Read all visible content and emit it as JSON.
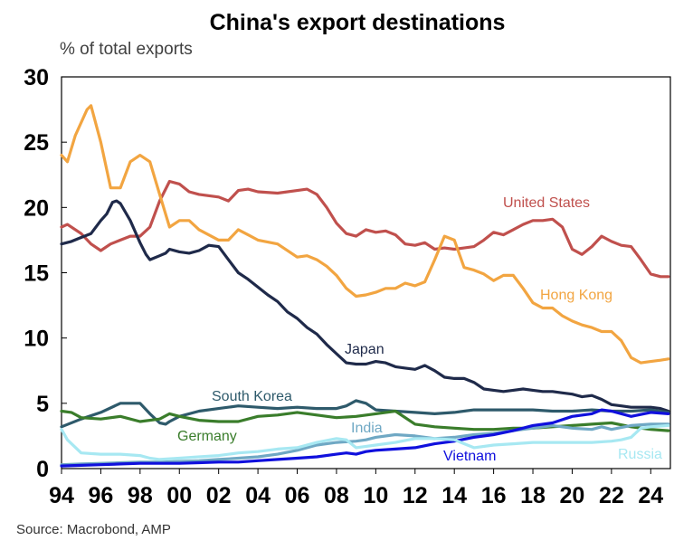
{
  "chart_data": {
    "type": "line",
    "title": "China's export destinations",
    "ylabel": "% of total exports",
    "source": "Source: Macrobond, AMP",
    "ylim": [
      0,
      30
    ],
    "xlim": [
      1994.0,
      2025.0
    ],
    "yticks": [
      0,
      5,
      10,
      15,
      20,
      25,
      30
    ],
    "xticks": [
      1994,
      1996,
      1998,
      2000,
      2002,
      2004,
      2006,
      2008,
      2010,
      2012,
      2014,
      2016,
      2018,
      2020,
      2022,
      2024
    ],
    "xtick_labels": [
      "94",
      "96",
      "98",
      "00",
      "02",
      "04",
      "06",
      "08",
      "10",
      "12",
      "14",
      "16",
      "18",
      "20",
      "22",
      "24"
    ],
    "grid": false,
    "series": [
      {
        "name": "United States",
        "color": "#c0504d",
        "x": [
          1994.0,
          1994.3,
          1995.0,
          1995.5,
          1996.0,
          1996.5,
          1997.0,
          1997.5,
          1998.0,
          1998.5,
          1999.0,
          1999.5,
          2000.0,
          2000.5,
          2001.0,
          2002.0,
          2002.5,
          2003.0,
          2003.5,
          2004.0,
          2005.0,
          2006.0,
          2006.5,
          2007.0,
          2007.5,
          2008.0,
          2008.5,
          2009.0,
          2009.5,
          2010.0,
          2010.5,
          2011.0,
          2011.5,
          2012.0,
          2012.5,
          2013.0,
          2013.5,
          2014.0,
          2014.5,
          2015.0,
          2015.5,
          2016.0,
          2016.5,
          2017.0,
          2017.5,
          2018.0,
          2018.5,
          2019.0,
          2019.5,
          2020.0,
          2020.5,
          2021.0,
          2021.5,
          2022.0,
          2022.5,
          2023.0,
          2023.5,
          2024.0,
          2024.5,
          2024.9
        ],
        "values": [
          18.5,
          18.7,
          18.0,
          17.2,
          16.7,
          17.2,
          17.5,
          17.8,
          17.8,
          18.5,
          20.5,
          22.0,
          21.8,
          21.2,
          21.0,
          20.8,
          20.5,
          21.3,
          21.4,
          21.2,
          21.1,
          21.3,
          21.4,
          21.0,
          20.0,
          18.8,
          18.0,
          17.8,
          18.3,
          18.1,
          18.2,
          17.9,
          17.2,
          17.1,
          17.3,
          16.8,
          16.9,
          16.8,
          16.9,
          17.0,
          17.5,
          18.1,
          17.9,
          18.3,
          18.7,
          19.0,
          19.0,
          19.1,
          18.5,
          16.8,
          16.4,
          17.0,
          17.8,
          17.4,
          17.1,
          17.0,
          16.0,
          14.9,
          14.7,
          14.7
        ]
      },
      {
        "name": "Hong Kong",
        "color": "#f2a541",
        "x": [
          1994.0,
          1994.3,
          1994.7,
          1995.0,
          1995.3,
          1995.5,
          1996.0,
          1996.5,
          1997.0,
          1997.5,
          1998.0,
          1998.5,
          1999.0,
          1999.5,
          2000.0,
          2000.5,
          2001.0,
          2002.0,
          2002.5,
          2003.0,
          2003.5,
          2004.0,
          2005.0,
          2006.0,
          2006.5,
          2007.0,
          2007.5,
          2008.0,
          2008.5,
          2009.0,
          2009.5,
          2010.0,
          2010.5,
          2011.0,
          2011.5,
          2012.0,
          2012.5,
          2013.0,
          2013.5,
          2014.0,
          2014.5,
          2015.0,
          2015.5,
          2016.0,
          2016.5,
          2017.0,
          2017.5,
          2018.0,
          2018.5,
          2019.0,
          2019.5,
          2020.0,
          2020.5,
          2021.0,
          2021.5,
          2022.0,
          2022.5,
          2023.0,
          2023.5,
          2024.0,
          2024.5,
          2024.9
        ],
        "values": [
          24.0,
          23.5,
          25.5,
          26.5,
          27.5,
          27.8,
          25.0,
          21.5,
          21.5,
          23.5,
          24.0,
          23.5,
          21.0,
          18.5,
          19.0,
          19.0,
          18.3,
          17.5,
          17.5,
          18.3,
          17.9,
          17.5,
          17.2,
          16.2,
          16.3,
          16.0,
          15.5,
          14.8,
          13.8,
          13.2,
          13.3,
          13.5,
          13.8,
          13.8,
          14.2,
          14.0,
          14.3,
          16.0,
          17.8,
          17.5,
          15.4,
          15.2,
          14.9,
          14.4,
          14.8,
          14.8,
          13.8,
          12.7,
          12.3,
          12.3,
          11.7,
          11.3,
          11.0,
          10.8,
          10.5,
          10.5,
          9.8,
          8.5,
          8.1,
          8.2,
          8.3,
          8.4
        ]
      },
      {
        "name": "Japan",
        "color": "#1f2a4a",
        "x": [
          1994.0,
          1994.5,
          1995.0,
          1995.5,
          1996.0,
          1996.3,
          1996.6,
          1996.8,
          1997.0,
          1997.5,
          1998.0,
          1998.3,
          1998.5,
          1999.0,
          1999.3,
          1999.5,
          2000.0,
          2000.5,
          2001.0,
          2001.5,
          2002.0,
          2002.5,
          2003.0,
          2003.5,
          2004.0,
          2004.5,
          2005.0,
          2005.5,
          2006.0,
          2006.5,
          2007.0,
          2007.5,
          2008.0,
          2008.5,
          2009.0,
          2009.5,
          2010.0,
          2010.5,
          2011.0,
          2011.5,
          2012.0,
          2012.5,
          2013.0,
          2013.5,
          2014.0,
          2014.5,
          2015.0,
          2015.5,
          2016.0,
          2016.5,
          2017.0,
          2017.5,
          2018.0,
          2018.5,
          2019.0,
          2019.5,
          2020.0,
          2020.5,
          2021.0,
          2021.5,
          2022.0,
          2022.5,
          2023.0,
          2023.5,
          2024.0,
          2024.5,
          2024.9
        ],
        "values": [
          17.2,
          17.4,
          17.7,
          18.0,
          19.0,
          19.5,
          20.4,
          20.5,
          20.3,
          19.0,
          17.3,
          16.4,
          16.0,
          16.3,
          16.5,
          16.8,
          16.6,
          16.5,
          16.7,
          17.1,
          17.0,
          16.0,
          15.0,
          14.5,
          13.9,
          13.3,
          12.8,
          12.0,
          11.5,
          10.8,
          10.3,
          9.5,
          8.8,
          8.1,
          8.0,
          8.0,
          8.2,
          8.1,
          7.8,
          7.7,
          7.6,
          7.9,
          7.5,
          7.0,
          6.9,
          6.9,
          6.6,
          6.1,
          6.0,
          5.9,
          6.0,
          6.1,
          6.0,
          5.9,
          5.9,
          5.8,
          5.7,
          5.5,
          5.6,
          5.3,
          4.9,
          4.8,
          4.7,
          4.7,
          4.7,
          4.6,
          4.4
        ]
      },
      {
        "name": "South Korea",
        "color": "#2e5a6b",
        "x": [
          1994.0,
          1995.0,
          1996.0,
          1997.0,
          1997.5,
          1998.0,
          1998.5,
          1999.0,
          1999.3,
          1999.5,
          2000.0,
          2001.0,
          2002.0,
          2003.0,
          2004.0,
          2005.0,
          2006.0,
          2007.0,
          2008.0,
          2008.5,
          2009.0,
          2009.5,
          2010.0,
          2011.0,
          2012.0,
          2013.0,
          2014.0,
          2015.0,
          2016.0,
          2017.0,
          2018.0,
          2019.0,
          2020.0,
          2021.0,
          2022.0,
          2023.0,
          2024.0,
          2024.9
        ],
        "values": [
          3.2,
          3.8,
          4.3,
          5.0,
          5.0,
          5.0,
          4.2,
          3.5,
          3.4,
          3.6,
          4.0,
          4.4,
          4.6,
          4.8,
          4.7,
          4.6,
          4.7,
          4.6,
          4.6,
          4.8,
          5.2,
          5.0,
          4.5,
          4.4,
          4.3,
          4.2,
          4.3,
          4.5,
          4.5,
          4.5,
          4.5,
          4.4,
          4.4,
          4.5,
          4.4,
          4.4,
          4.5,
          4.3
        ]
      },
      {
        "name": "Germany",
        "color": "#3a7d2b",
        "x": [
          1994.0,
          1994.5,
          1995.0,
          1996.0,
          1997.0,
          1998.0,
          1999.0,
          1999.5,
          2000.0,
          2001.0,
          2002.0,
          2003.0,
          2004.0,
          2005.0,
          2006.0,
          2007.0,
          2008.0,
          2009.0,
          2010.0,
          2011.0,
          2012.0,
          2013.0,
          2014.0,
          2015.0,
          2016.0,
          2017.0,
          2018.0,
          2019.0,
          2020.0,
          2021.0,
          2022.0,
          2023.0,
          2024.0,
          2024.9
        ],
        "values": [
          4.4,
          4.3,
          3.9,
          3.8,
          4.0,
          3.6,
          3.8,
          4.2,
          4.0,
          3.7,
          3.6,
          3.6,
          4.0,
          4.1,
          4.3,
          4.1,
          3.9,
          4.0,
          4.2,
          4.4,
          3.4,
          3.2,
          3.1,
          3.0,
          3.0,
          3.1,
          3.1,
          3.2,
          3.3,
          3.4,
          3.5,
          3.2,
          3.0,
          2.9
        ]
      },
      {
        "name": "India",
        "color": "#6fa8c4",
        "x": [
          1994.0,
          1995.0,
          1996.0,
          1997.0,
          1998.0,
          1999.0,
          2000.0,
          2001.0,
          2002.0,
          2003.0,
          2004.0,
          2005.0,
          2006.0,
          2007.0,
          2008.0,
          2009.0,
          2009.5,
          2010.0,
          2011.0,
          2012.0,
          2013.0,
          2014.0,
          2015.0,
          2016.0,
          2017.0,
          2018.0,
          2019.0,
          2020.0,
          2021.0,
          2021.5,
          2022.0,
          2023.0,
          2024.0,
          2024.9
        ],
        "values": [
          0.3,
          0.35,
          0.4,
          0.45,
          0.5,
          0.5,
          0.55,
          0.6,
          0.7,
          0.8,
          0.9,
          1.1,
          1.4,
          1.8,
          2.0,
          2.1,
          2.2,
          2.4,
          2.6,
          2.5,
          2.3,
          2.4,
          2.6,
          2.7,
          2.9,
          3.1,
          3.3,
          3.1,
          3.0,
          3.2,
          3.0,
          3.3,
          3.4,
          3.4
        ]
      },
      {
        "name": "Vietnam",
        "color": "#1010dd",
        "x": [
          1994.0,
          1995.0,
          1996.0,
          1997.0,
          1998.0,
          1999.0,
          2000.0,
          2001.0,
          2002.0,
          2003.0,
          2004.0,
          2005.0,
          2006.0,
          2007.0,
          2008.0,
          2008.5,
          2009.0,
          2009.5,
          2010.0,
          2011.0,
          2012.0,
          2013.0,
          2014.0,
          2015.0,
          2016.0,
          2017.0,
          2018.0,
          2019.0,
          2020.0,
          2021.0,
          2021.5,
          2022.0,
          2023.0,
          2024.0,
          2024.9
        ],
        "values": [
          0.2,
          0.25,
          0.3,
          0.35,
          0.4,
          0.4,
          0.4,
          0.45,
          0.5,
          0.5,
          0.6,
          0.7,
          0.8,
          0.9,
          1.1,
          1.2,
          1.1,
          1.3,
          1.4,
          1.5,
          1.6,
          1.9,
          2.1,
          2.4,
          2.6,
          2.9,
          3.3,
          3.5,
          4.0,
          4.2,
          4.5,
          4.4,
          4.0,
          4.3,
          4.2
        ]
      },
      {
        "name": "Russia",
        "color": "#a7e8f2",
        "x": [
          1994.0,
          1994.3,
          1995.0,
          1996.0,
          1997.0,
          1998.0,
          1998.5,
          1999.0,
          2000.0,
          2001.0,
          2002.0,
          2003.0,
          2004.0,
          2005.0,
          2006.0,
          2007.0,
          2008.0,
          2008.5,
          2009.0,
          2010.0,
          2011.0,
          2012.0,
          2013.0,
          2014.0,
          2015.0,
          2016.0,
          2017.0,
          2018.0,
          2019.0,
          2020.0,
          2021.0,
          2022.0,
          2022.5,
          2023.0,
          2023.5,
          2024.0,
          2024.9
        ],
        "values": [
          3.0,
          2.2,
          1.2,
          1.1,
          1.1,
          1.0,
          0.8,
          0.7,
          0.8,
          0.9,
          1.0,
          1.2,
          1.3,
          1.5,
          1.6,
          2.0,
          2.3,
          2.2,
          1.6,
          1.8,
          2.0,
          2.3,
          2.3,
          2.2,
          1.6,
          1.8,
          1.9,
          2.0,
          2.0,
          2.0,
          2.0,
          2.1,
          2.2,
          2.4,
          3.1,
          3.2,
          3.3
        ]
      }
    ],
    "series_labels": [
      "United States",
      "Hong Kong",
      "Japan",
      "South Korea",
      "Germany",
      "India",
      "Vietnam",
      "Russia"
    ]
  }
}
